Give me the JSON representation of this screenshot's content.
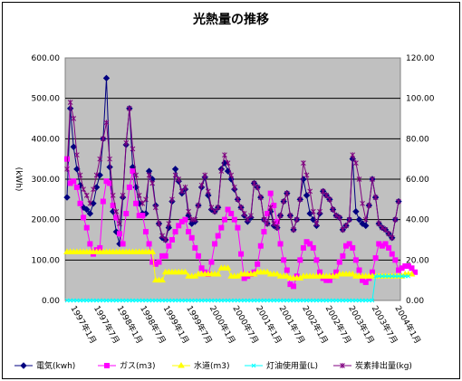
{
  "chart_data": {
    "type": "line",
    "title": "光熱量の推移",
    "ylabel": "(kWh)",
    "ylim": [
      0,
      600
    ],
    "y2lim": [
      0,
      120
    ],
    "y_ticks": [
      "0.00",
      "100.00",
      "200.00",
      "300.00",
      "400.00",
      "500.00",
      "600.00"
    ],
    "y2_ticks": [
      "0.00",
      "20.00",
      "40.00",
      "60.00",
      "80.00",
      "100.00",
      "120.00"
    ],
    "grid": true,
    "legend": "bottom",
    "x_tick_labels": [
      "1997年1月",
      "1997年7月",
      "1998年1月",
      "1998年7月",
      "1999年1月",
      "1999年7月",
      "2000年1月",
      "2000年7月",
      "2001年1月",
      "2001年7月",
      "2002年1月",
      "2002年7月",
      "2003年1月",
      "2003年7月",
      "2004年1月"
    ],
    "series": [
      {
        "name": "電気(kwh)",
        "axis": "left",
        "color": "#000080",
        "marker": "diamond",
        "values": [
          255,
          475,
          380,
          325,
          285,
          230,
          225,
          215,
          240,
          280,
          310,
          400,
          550,
          330,
          220,
          170,
          140,
          255,
          385,
          475,
          330,
          280,
          240,
          215,
          215,
          320,
          300,
          235,
          190,
          155,
          150,
          180,
          245,
          325,
          295,
          265,
          275,
          210,
          190,
          195,
          235,
          280,
          305,
          260,
          225,
          220,
          230,
          325,
          340,
          320,
          300,
          275,
          250,
          230,
          210,
          195,
          205,
          290,
          280,
          255,
          200,
          190,
          220,
          185,
          180,
          210,
          245,
          265,
          210,
          175,
          200,
          250,
          300,
          260,
          215,
          200,
          185,
          215,
          270,
          260,
          250,
          225,
          210,
          205,
          175,
          185,
          200,
          350,
          220,
          200,
          190,
          185,
          235,
          300,
          255,
          190,
          180,
          175,
          165,
          155,
          200,
          245
        ]
      },
      {
        "name": "ガス(m3)",
        "axis": "left",
        "color": "#FF00FF",
        "marker": "square",
        "values": [
          350,
          290,
          295,
          280,
          240,
          205,
          180,
          140,
          115,
          125,
          130,
          245,
          295,
          290,
          235,
          205,
          165,
          140,
          215,
          280,
          320,
          240,
          210,
          210,
          170,
          140,
          95,
          90,
          95,
          110,
          110,
          135,
          150,
          170,
          185,
          195,
          200,
          170,
          155,
          130,
          110,
          80,
          70,
          65,
          95,
          140,
          160,
          180,
          200,
          225,
          215,
          200,
          180,
          115,
          55,
          60,
          65,
          70,
          90,
          135,
          170,
          215,
          265,
          235,
          195,
          140,
          100,
          75,
          40,
          35,
          60,
          100,
          130,
          145,
          140,
          130,
          100,
          70,
          55,
          50,
          50,
          60,
          70,
          95,
          110,
          135,
          140,
          130,
          100,
          75,
          50,
          45,
          55,
          70,
          105,
          140,
          135,
          140,
          130,
          115,
          100,
          75,
          80,
          85,
          85,
          80,
          70
        ]
      },
      {
        "name": "水道(m3)",
        "axis": "right",
        "color": "#FFFF00",
        "marker": "triangle",
        "values": [
          24,
          24,
          24,
          24,
          24,
          24,
          24,
          24,
          24,
          24,
          24,
          24,
          24,
          24,
          24,
          24,
          24,
          24,
          24,
          24,
          24,
          24,
          24,
          24,
          24,
          24,
          24,
          10,
          10,
          10,
          14,
          14,
          14,
          14,
          14,
          14,
          14,
          12,
          12,
          12,
          13,
          13,
          13,
          13,
          13,
          13,
          13,
          16,
          16,
          16,
          12,
          12,
          12,
          13,
          13,
          13,
          13,
          13,
          14,
          14,
          14,
          14,
          13,
          13,
          13,
          12,
          12,
          12,
          11,
          11,
          11,
          11,
          12,
          12,
          12,
          12,
          12,
          12,
          12,
          12,
          12,
          12,
          12,
          13,
          13,
          13,
          13,
          13,
          12,
          12,
          12,
          12,
          12,
          12,
          12,
          12,
          12,
          12,
          12,
          12,
          12,
          12,
          12,
          13,
          13,
          13
        ]
      },
      {
        "name": "灯油使用量(L)",
        "axis": "left",
        "color": "#00FFFF",
        "marker": "x",
        "values": [
          0,
          0,
          0,
          0,
          0,
          0,
          0,
          0,
          0,
          0,
          0,
          0,
          0,
          0,
          0,
          0,
          0,
          0,
          0,
          0,
          0,
          0,
          0,
          0,
          0,
          0,
          0,
          0,
          0,
          0,
          0,
          0,
          0,
          0,
          0,
          0,
          0,
          0,
          0,
          0,
          0,
          0,
          0,
          0,
          0,
          0,
          0,
          0,
          0,
          0,
          0,
          0,
          0,
          0,
          0,
          0,
          0,
          0,
          0,
          0,
          0,
          0,
          0,
          0,
          0,
          0,
          0,
          0,
          0,
          0,
          0,
          0,
          0,
          0,
          0,
          0,
          0,
          0,
          0,
          0,
          0,
          0,
          0,
          0,
          0,
          0,
          0,
          0,
          0,
          0,
          0,
          0,
          0,
          0,
          60,
          60,
          60,
          60,
          60,
          60,
          60,
          60,
          60,
          60,
          60
        ]
      },
      {
        "name": "炭素排出量(kg)",
        "axis": "right",
        "color": "#800080",
        "marker": "star",
        "values": [
          65,
          98,
          90,
          72,
          62,
          55,
          52,
          48,
          55,
          62,
          70,
          80,
          88,
          70,
          52,
          44,
          38,
          52,
          78,
          95,
          75,
          62,
          52,
          48,
          50,
          62,
          58,
          46,
          38,
          32,
          30,
          38,
          50,
          62,
          60,
          54,
          56,
          44,
          40,
          40,
          47,
          57,
          62,
          54,
          46,
          44,
          46,
          64,
          72,
          68,
          62,
          56,
          50,
          46,
          43,
          40,
          42,
          58,
          56,
          51,
          40,
          38,
          46,
          38,
          36,
          42,
          49,
          53,
          42,
          35,
          40,
          50,
          68,
          62,
          54,
          44,
          38,
          44,
          54,
          52,
          50,
          45,
          42,
          41,
          35,
          37,
          40,
          72,
          68,
          60,
          48,
          40,
          47,
          60,
          51,
          38,
          36,
          35,
          33,
          31,
          40,
          49
        ]
      }
    ]
  }
}
